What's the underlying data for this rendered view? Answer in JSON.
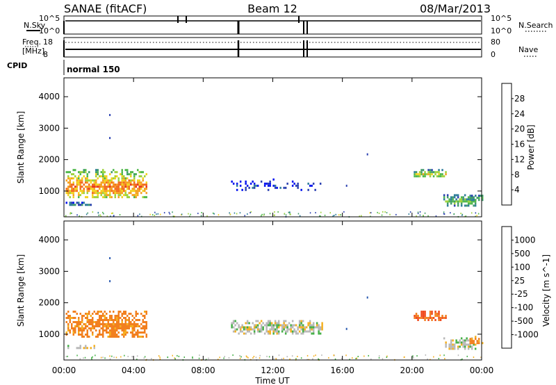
{
  "header": {
    "station": "SANAE (fitACF)",
    "beam": "Beam 12",
    "date": "08/Mar/2013"
  },
  "panels": {
    "nsky": {
      "left_label": "N.Sky",
      "left_ticks": [
        "10^5",
        "10^0"
      ],
      "right_ticks": [
        "10^5",
        "10^0"
      ],
      "right_label": "N.Search"
    },
    "freq": {
      "left_label_top": "Freq.",
      "left_label_unit": "[MHz]",
      "left_ticks": [
        "18",
        "8"
      ],
      "right_ticks": [
        "80",
        "0"
      ],
      "right_label": "Nave"
    },
    "cpid": {
      "label": "CPID",
      "mode": "normal 150"
    }
  },
  "axes": {
    "ylabel": "Slant Range [km]",
    "yticks": [
      "4000",
      "3000",
      "2000",
      "1000"
    ],
    "ytick_values": [
      4000,
      3000,
      2000,
      1000
    ],
    "xlabel": "Time UT",
    "xticks": [
      "00:00",
      "04:00",
      "08:00",
      "12:00",
      "16:00",
      "20:00",
      "00:00"
    ],
    "xtick_hours": [
      0,
      4,
      8,
      12,
      16,
      20,
      24
    ]
  },
  "colorbars": {
    "power": {
      "label": "Power [dB]",
      "ticks": [
        "28",
        "24",
        "20",
        "16",
        "12",
        "8",
        "4"
      ],
      "colors": [
        "#0010f0",
        "#2a3fb0",
        "#2e7d9a",
        "#3f9a6a",
        "#4fb84a",
        "#9ed23a",
        "#f2d21e",
        "#f5a020",
        "#f26a1e",
        "#e8321e",
        "#e00000"
      ]
    },
    "velocity": {
      "label": "Velocity [m s^-1]",
      "ticks": [
        "1000",
        "500",
        "100",
        "25",
        "-25",
        "-100",
        "-500",
        "-1000"
      ],
      "colors": [
        "#1030c0",
        "#2a5ab0",
        "#3a8a80",
        "#44b046",
        "#b8b8b8",
        "#f5b020",
        "#f28020",
        "#f04a1e",
        "#e00000"
      ]
    }
  },
  "chart_data": {
    "type": "heatmap",
    "title": "SANAE (fitACF)  Beam 12  08/Mar/2013",
    "xlabel": "Time UT",
    "ylabel": "Slant Range [km]",
    "xlim_hours": [
      0,
      24
    ],
    "ylim_km": [
      180,
      4600
    ],
    "series": [
      {
        "name": "Power",
        "unit": "dB",
        "range": [
          0,
          30
        ],
        "regions": [
          {
            "t0": 0.1,
            "t1": 4.7,
            "r0": 800,
            "r1": 1700,
            "level": 0.62
          },
          {
            "t0": 0.1,
            "t1": 1.7,
            "r0": 560,
            "r1": 660,
            "level": 0.2
          },
          {
            "t0": 9.6,
            "t1": 14.8,
            "r0": 1050,
            "r1": 1400,
            "level": 0.08
          },
          {
            "t0": 20.1,
            "t1": 21.9,
            "r0": 1450,
            "r1": 1700,
            "level": 0.45
          },
          {
            "t0": 21.8,
            "t1": 23.6,
            "r0": 550,
            "r1": 900,
            "level": 0.35
          },
          {
            "t0": 23.3,
            "t1": 24.0,
            "r0": 700,
            "r1": 950,
            "level": 0.3
          }
        ]
      },
      {
        "name": "Velocity",
        "unit": "m/s",
        "range": [
          -1000,
          1000
        ],
        "regions": [
          {
            "t0": 0.1,
            "t1": 4.7,
            "r0": 900,
            "r1": 1750,
            "value": -150
          },
          {
            "t0": 0.1,
            "t1": 1.7,
            "r0": 560,
            "r1": 660,
            "value": 0
          },
          {
            "t0": 9.6,
            "t1": 14.8,
            "r0": 1050,
            "r1": 1450,
            "value": 0
          },
          {
            "t0": 20.1,
            "t1": 21.9,
            "r0": 1450,
            "r1": 1750,
            "value": -300
          },
          {
            "t0": 21.8,
            "t1": 23.6,
            "r0": 550,
            "r1": 900,
            "value": 0
          },
          {
            "t0": 23.3,
            "t1": 24.0,
            "r0": 700,
            "r1": 950,
            "value": -100
          }
        ]
      }
    ]
  }
}
